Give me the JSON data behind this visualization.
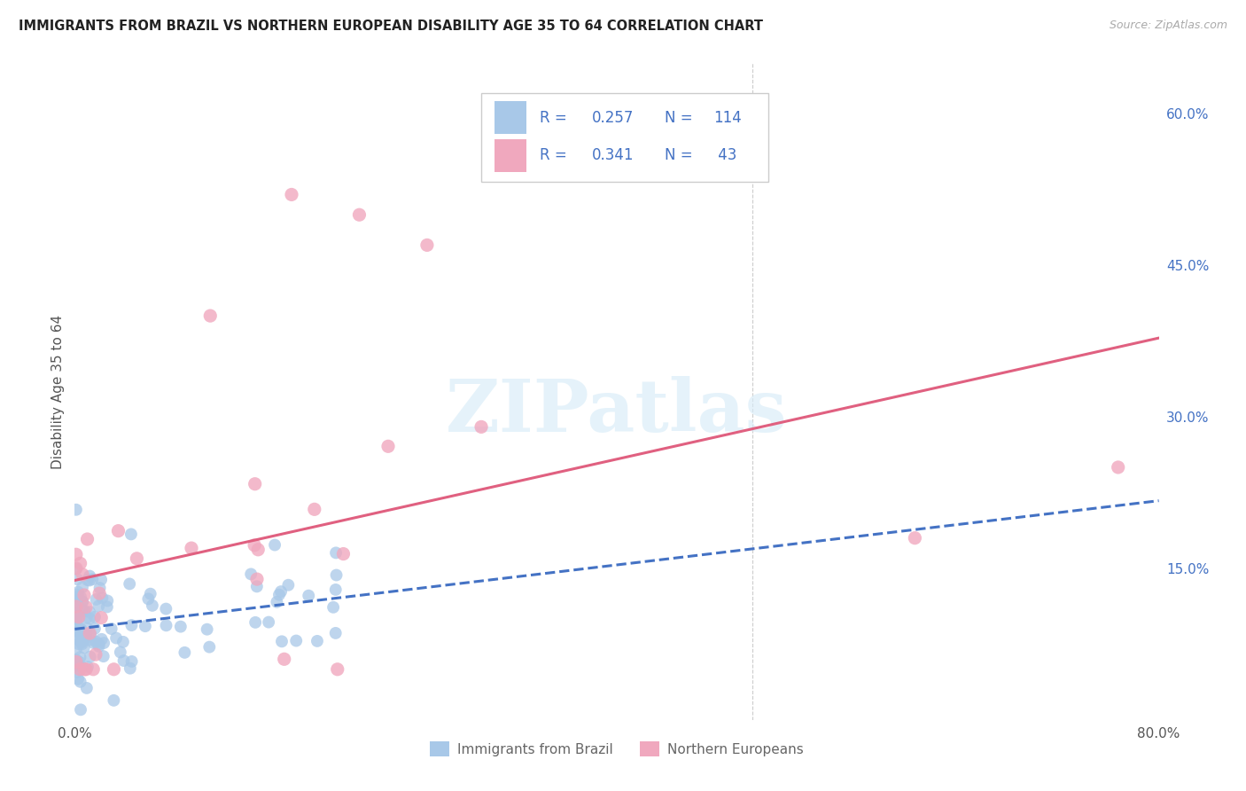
{
  "title": "IMMIGRANTS FROM BRAZIL VS NORTHERN EUROPEAN DISABILITY AGE 35 TO 64 CORRELATION CHART",
  "source": "Source: ZipAtlas.com",
  "ylabel": "Disability Age 35 to 64",
  "xlim": [
    0.0,
    0.8
  ],
  "ylim": [
    0.0,
    0.65
  ],
  "xtick_positions": [
    0.0,
    0.1,
    0.2,
    0.3,
    0.4,
    0.5,
    0.6,
    0.7,
    0.8
  ],
  "xtick_labels": [
    "0.0%",
    "",
    "",
    "",
    "",
    "",
    "",
    "",
    "80.0%"
  ],
  "ytick_right_positions": [
    0.0,
    0.15,
    0.3,
    0.45,
    0.6
  ],
  "ytick_right_labels": [
    "",
    "15.0%",
    "30.0%",
    "45.0%",
    "60.0%"
  ],
  "watermark": "ZIPatlas",
  "brazil_color": "#a8c8e8",
  "north_eu_color": "#f0a8be",
  "brazil_line_color": "#4472c4",
  "north_eu_line_color": "#e06080",
  "brazil_label": "Immigrants from Brazil",
  "north_eu_label": "Northern Europeans",
  "brazil_R": 0.257,
  "north_eu_R": 0.341,
  "brazil_N": 114,
  "north_eu_N": 43,
  "legend_text_color": "#4472c4",
  "grid_color": "#d8d8d8",
  "title_color": "#222222",
  "axis_label_color": "#555555",
  "right_axis_color": "#4472c4",
  "bottom_label_color": "#666666"
}
